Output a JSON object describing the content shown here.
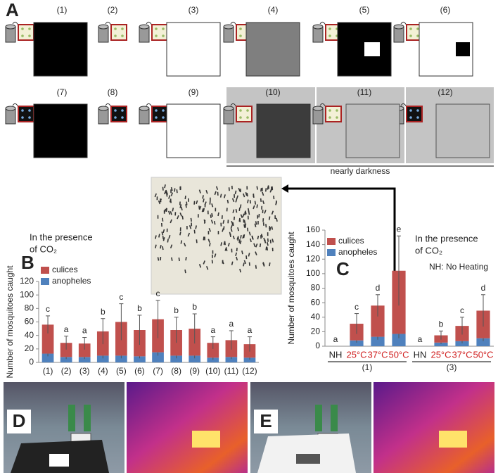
{
  "panel_a": {
    "label": "A",
    "panels": [
      "(1)",
      "(2)",
      "(3)",
      "(4)",
      "(5)",
      "(6)",
      "(7)",
      "(8)",
      "(9)",
      "(10)",
      "(11)",
      "(12)"
    ],
    "note": "nearly darkness"
  },
  "chart_data": [
    {
      "type": "bar",
      "stacked": true,
      "label": "B",
      "annotation": [
        "In the presence",
        "of CO₂"
      ],
      "ylabel": "Number of mosquitoes caught",
      "categories": [
        "(1)",
        "(2)",
        "(3)",
        "(4)",
        "(5)",
        "(6)",
        "(7)",
        "(8)",
        "(9)",
        "(10)",
        "(11)",
        "(12)"
      ],
      "series": [
        {
          "name": "anopheles",
          "color": "#4f81bd",
          "values": [
            13,
            8,
            8,
            10,
            10,
            9,
            15,
            10,
            10,
            7,
            8,
            7
          ],
          "errors": [
            4,
            3,
            3,
            4,
            4,
            3,
            5,
            4,
            4,
            3,
            3,
            3
          ]
        },
        {
          "name": "culices",
          "color": "#c0504d",
          "values": [
            43,
            21,
            20,
            36,
            50,
            39,
            49,
            38,
            40,
            22,
            25,
            20
          ],
          "errors": [
            13,
            10,
            9,
            19,
            27,
            22,
            28,
            19,
            22,
            9,
            14,
            11
          ]
        }
      ],
      "significance": [
        "c",
        "a",
        "a",
        "b",
        "c",
        "b",
        "c",
        "b",
        "b",
        "a",
        "a",
        "a"
      ],
      "ylim": [
        0,
        120
      ],
      "yticks": [
        0,
        20,
        40,
        60,
        80,
        100,
        120
      ],
      "legend": "upper left"
    },
    {
      "type": "bar",
      "stacked": true,
      "label": "C",
      "annotation": [
        "In the presence",
        "of CO₂"
      ],
      "note": "NH: No Heating",
      "ylabel": "Number of mosquitoes caught",
      "categories": [
        "NH",
        "25°C",
        "37°C",
        "50°C",
        "HN",
        "25°C",
        "37°C",
        "50°C"
      ],
      "category_colors": [
        "#222222",
        "#d02020",
        "#d02020",
        "#d02020",
        "#222222",
        "#d02020",
        "#d02020",
        "#d02020"
      ],
      "groups": [
        "(1)",
        "(3)"
      ],
      "series": [
        {
          "name": "anopheles",
          "color": "#4f81bd",
          "values": [
            0,
            8,
            13,
            17,
            0,
            5,
            7,
            11
          ],
          "errors": [
            0,
            3,
            4,
            6,
            0,
            2,
            3,
            4
          ]
        },
        {
          "name": "culices",
          "color": "#c0504d",
          "values": [
            0,
            23,
            43,
            87,
            0,
            10,
            21,
            38
          ],
          "errors": [
            0,
            14,
            15,
            48,
            0,
            6,
            12,
            22
          ]
        }
      ],
      "significance": [
        "a",
        "c",
        "d",
        "e",
        "a",
        "b",
        "c",
        "d"
      ],
      "ylim": [
        0,
        160
      ],
      "yticks": [
        0,
        20,
        40,
        60,
        80,
        100,
        120,
        140,
        160
      ],
      "legend": "upper left"
    }
  ],
  "panel_d": {
    "label": "D"
  },
  "panel_e": {
    "label": "E"
  }
}
